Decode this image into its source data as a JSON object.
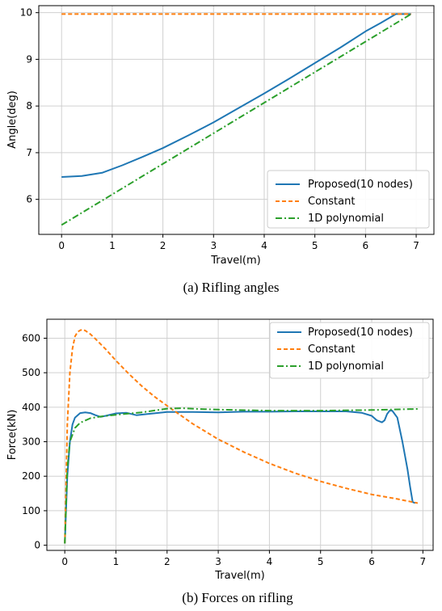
{
  "colors": {
    "proposed": "#1f77b4",
    "constant": "#ff7f0e",
    "poly": "#2ca02c",
    "grid": "#d0d0d0"
  },
  "chart_data": [
    {
      "type": "line",
      "caption": "(a) Rifling angles",
      "xlabel": "Travel(m)",
      "ylabel": "Angle(deg)",
      "xlim": [
        -0.45,
        7.35
      ],
      "ylim": [
        5.25,
        10.15
      ],
      "xticks": [
        0,
        1,
        2,
        3,
        4,
        5,
        6,
        7
      ],
      "yticks": [
        6,
        7,
        8,
        9,
        10
      ],
      "grid": true,
      "legend_position": "lower-right",
      "series": [
        {
          "name": "Proposed(10 nodes)",
          "style": "solid",
          "color": "#1f77b4",
          "x": [
            0,
            0.4,
            0.8,
            1.2,
            1.6,
            2.0,
            2.5,
            3.0,
            3.5,
            4.0,
            4.5,
            5.0,
            5.5,
            6.0,
            6.3,
            6.6,
            6.9
          ],
          "y": [
            6.48,
            6.5,
            6.57,
            6.73,
            6.91,
            7.1,
            7.37,
            7.65,
            7.96,
            8.27,
            8.59,
            8.92,
            9.25,
            9.6,
            9.78,
            9.97,
            9.97
          ]
        },
        {
          "name": "Constant",
          "style": "dashed",
          "color": "#ff7f0e",
          "x": [
            0,
            6.9
          ],
          "y": [
            9.97,
            9.97
          ]
        },
        {
          "name": "1D polynomial",
          "style": "dashdot",
          "color": "#2ca02c",
          "x": [
            0,
            6.9
          ],
          "y": [
            5.45,
            9.97
          ]
        }
      ]
    },
    {
      "type": "line",
      "caption": "(b) Forces on rifling",
      "xlabel": "Travel(m)",
      "ylabel": "Force(kN)",
      "xlim": [
        -0.35,
        7.2
      ],
      "ylim": [
        -15,
        655
      ],
      "xticks": [
        0,
        1,
        2,
        3,
        4,
        5,
        6,
        7
      ],
      "yticks": [
        0,
        100,
        200,
        300,
        400,
        500,
        600
      ],
      "grid": true,
      "legend_position": "upper-right",
      "series": [
        {
          "name": "Proposed(10 nodes)",
          "style": "solid",
          "color": "#1f77b4",
          "x": [
            0,
            0.05,
            0.1,
            0.15,
            0.2,
            0.3,
            0.4,
            0.5,
            0.6,
            0.7,
            0.8,
            1.0,
            1.2,
            1.4,
            1.6,
            2.0,
            2.5,
            3.0,
            3.5,
            4.0,
            4.5,
            5.0,
            5.5,
            5.8,
            6.0,
            6.1,
            6.2,
            6.25,
            6.3,
            6.35,
            6.4,
            6.5,
            6.6,
            6.7,
            6.75,
            6.8,
            6.85
          ],
          "y": [
            5,
            200,
            300,
            350,
            370,
            383,
            385,
            383,
            377,
            372,
            375,
            382,
            384,
            377,
            380,
            386,
            386,
            385,
            387,
            387,
            388,
            388,
            388,
            384,
            375,
            362,
            356,
            362,
            380,
            390,
            390,
            370,
            300,
            220,
            170,
            125,
            122
          ]
        },
        {
          "name": "Constant",
          "style": "dashed",
          "color": "#ff7f0e",
          "x": [
            0,
            0.05,
            0.1,
            0.15,
            0.2,
            0.25,
            0.3,
            0.35,
            0.4,
            0.5,
            0.6,
            0.8,
            1.0,
            1.25,
            1.5,
            1.75,
            2.0,
            2.5,
            3.0,
            3.5,
            4.0,
            4.5,
            5.0,
            5.5,
            6.0,
            6.5,
            6.9
          ],
          "y": [
            5,
            350,
            500,
            570,
            605,
            618,
            623,
            625,
            622,
            612,
            598,
            568,
            535,
            497,
            462,
            431,
            404,
            352,
            307,
            270,
            237,
            209,
            185,
            165,
            147,
            134,
            122
          ]
        },
        {
          "name": "1D polynomial",
          "style": "dashdot",
          "color": "#2ca02c",
          "x": [
            0,
            0.05,
            0.1,
            0.2,
            0.3,
            0.5,
            0.7,
            1.0,
            1.5,
            2.0,
            2.3,
            2.6,
            3.0,
            4.0,
            5.0,
            6.0,
            6.9
          ],
          "y": [
            5,
            220,
            300,
            340,
            355,
            368,
            373,
            378,
            385,
            396,
            397,
            395,
            393,
            390,
            390,
            392,
            395
          ]
        }
      ]
    }
  ]
}
